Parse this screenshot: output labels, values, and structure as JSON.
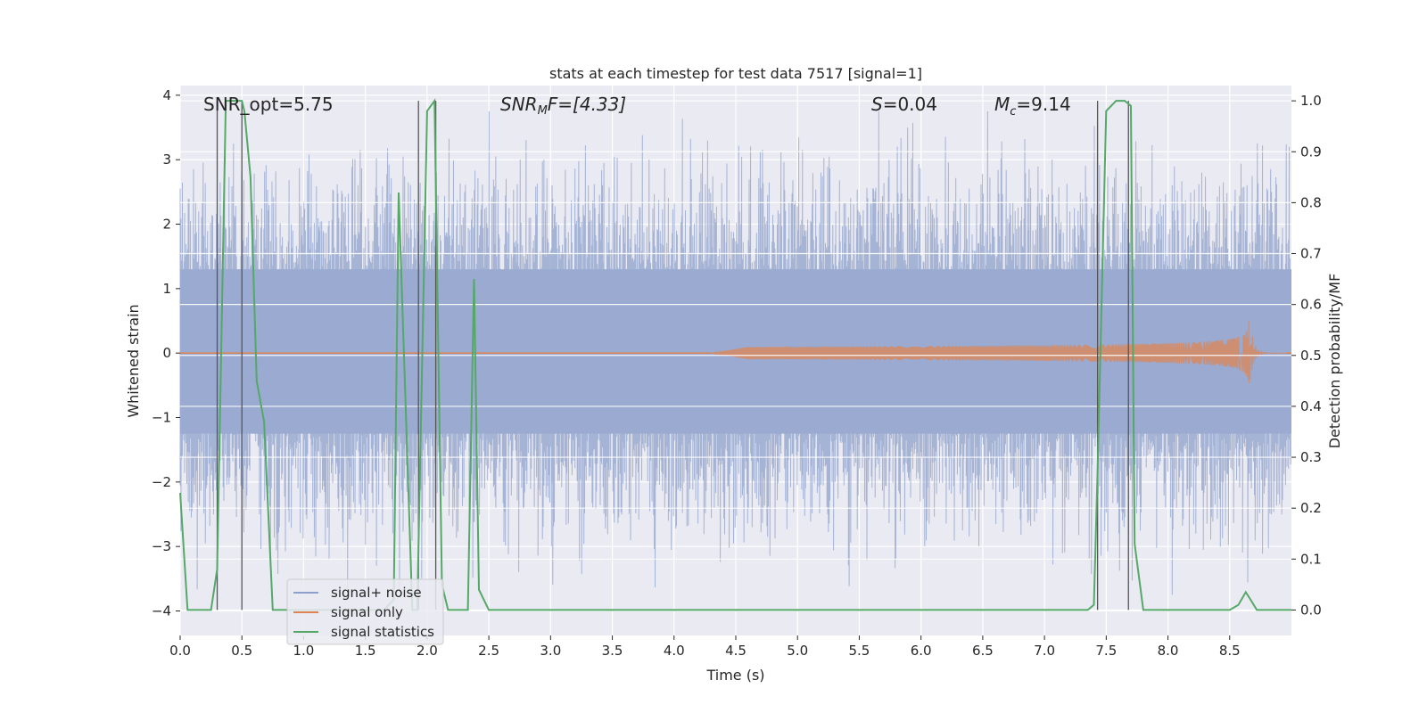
{
  "chart_data": {
    "type": "line",
    "title": "stats at each timestep for test data 7517 [signal=1]",
    "xlabel": "Time (s)",
    "ylabel_left": "Whitened strain",
    "ylabel_right": "Detection probability/MF",
    "xlim": [
      0,
      9.0
    ],
    "ylim_left": [
      -4.38,
      4.15
    ],
    "ylim_right": [
      -0.05,
      1.03
    ],
    "x_ticks": [
      "0.0",
      "0.5",
      "1.0",
      "1.5",
      "2.0",
      "2.5",
      "3.0",
      "3.5",
      "4.0",
      "4.5",
      "5.0",
      "5.5",
      "6.0",
      "6.5",
      "7.0",
      "7.5",
      "8.0",
      "8.5"
    ],
    "y_ticks_left": [
      "4",
      "3",
      "2",
      "1",
      "0",
      "−1",
      "−2",
      "−3",
      "−4"
    ],
    "y_ticks_right": [
      "1.0",
      "0.9",
      "0.8",
      "0.7",
      "0.6",
      "0.5",
      "0.4",
      "0.3",
      "0.2",
      "0.1",
      "0.0"
    ],
    "annotations": {
      "snr_opt": "SNR_opt=5.75",
      "snr_mf_base": "SNR",
      "snr_mf_sub": "M",
      "snr_mf_rest": "F=[4.33]",
      "s_base": "S",
      "s_rest": "=0.04",
      "mc_base": "M",
      "mc_sub": "c",
      "mc_rest": "=9.14"
    },
    "series": [
      {
        "name": "signal+ noise",
        "color": "#8da0cb",
        "style": "noise envelope, approx. ±1.5 typical, peaks to ±3.7"
      },
      {
        "name": "signal only",
        "color": "#dd8452",
        "description": "chirp, amplitude growing from 0 at t≈4.3 to ±0.65 at t≈8.65, then ringdown"
      },
      {
        "name": "signal statistics",
        "color": "#55a868",
        "x": [
          0.0,
          0.06,
          0.25,
          0.3,
          0.37,
          0.5,
          0.52,
          0.57,
          0.62,
          0.68,
          0.75,
          1.65,
          1.73,
          1.77,
          1.88,
          1.92,
          2.0,
          2.06,
          2.12,
          2.17,
          2.23,
          2.33,
          2.38,
          2.42,
          2.5,
          7.35,
          7.4,
          7.43,
          7.5,
          7.58,
          7.65,
          7.7,
          7.73,
          7.8,
          8.5,
          8.57,
          8.63,
          8.67,
          8.72,
          9.0
        ],
        "y": [
          0.23,
          0.0,
          0.0,
          0.08,
          1.0,
          1.0,
          0.98,
          0.85,
          0.45,
          0.37,
          0.0,
          0.0,
          0.02,
          0.82,
          0.0,
          0.0,
          0.98,
          1.0,
          0.05,
          0.0,
          0.0,
          0.0,
          0.65,
          0.04,
          0.0,
          0.0,
          0.01,
          0.27,
          0.98,
          1.0,
          1.0,
          0.99,
          0.13,
          0.0,
          0.0,
          0.01,
          0.035,
          0.02,
          0.0,
          0.0
        ]
      },
      {
        "name": "vertical markers",
        "color": "#555555",
        "x": [
          0.3,
          0.5,
          1.93,
          2.07,
          7.43,
          7.68
        ]
      }
    ],
    "legend": {
      "position": "lower-left",
      "entries": [
        "signal+ noise",
        "signal only",
        "signal statistics"
      ]
    }
  }
}
